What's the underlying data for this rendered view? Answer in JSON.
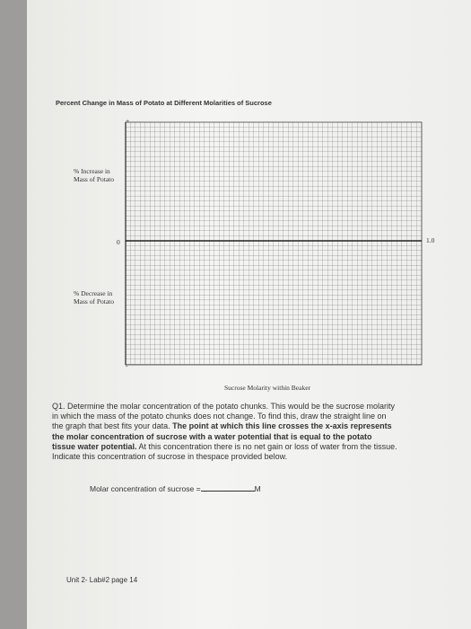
{
  "header": {
    "title": "Percent Change in Mass of Potato at Different Molarities of Sucrose"
  },
  "graph": {
    "plus_sign": "+",
    "minus_sign": "-",
    "increase_label": "% Increase in Mass of Potato",
    "decrease_label": "% Decrease in Mass of Potato",
    "zero_label": "0",
    "end_label": "1.0",
    "x_axis_label": "Sucrose Molarity within Beaker"
  },
  "question": {
    "label": "Q1.",
    "segments": [
      {
        "text": "Determine the molar concentration of the potato chunks. This would be the sucrose molarity in which the mass of the potato chunks does not change. To find this, draw the straight line on the graph that best fits your data. ",
        "bold": false
      },
      {
        "text": "The point at which this line crosses the x-axis represents the molar concentration of sucrose with a water potential that is equal to the potato tissue water potential.",
        "bold": true
      },
      {
        "text": " At this concentration there is no net gain or loss of water from the tissue. Indicate this concentration of sucrose in thespace provided below.",
        "bold": false
      }
    ]
  },
  "answer": {
    "prompt": "Molar concentration of sucrose =",
    "unit": "M"
  },
  "footer": {
    "text": "Unit 2- Lab#2 page 14"
  }
}
